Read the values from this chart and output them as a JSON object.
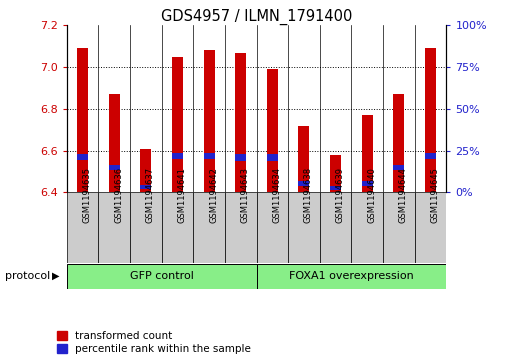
{
  "title": "GDS4957 / ILMN_1791400",
  "samples": [
    "GSM1194635",
    "GSM1194636",
    "GSM1194637",
    "GSM1194641",
    "GSM1194642",
    "GSM1194643",
    "GSM1194634",
    "GSM1194638",
    "GSM1194639",
    "GSM1194640",
    "GSM1194644",
    "GSM1194645"
  ],
  "red_values": [
    7.09,
    6.87,
    6.61,
    7.05,
    7.08,
    7.07,
    6.99,
    6.72,
    6.58,
    6.77,
    6.87,
    7.09
  ],
  "blue_bottom": [
    6.555,
    6.505,
    6.415,
    6.558,
    6.558,
    6.552,
    6.552,
    6.432,
    6.411,
    6.432,
    6.505,
    6.558
  ],
  "blue_heights": [
    0.03,
    0.026,
    0.022,
    0.03,
    0.03,
    0.03,
    0.03,
    0.022,
    0.018,
    0.022,
    0.026,
    0.03
  ],
  "ymin": 6.4,
  "ymax": 7.2,
  "yleft_ticks": [
    6.4,
    6.6,
    6.8,
    7.0,
    7.2
  ],
  "yright_ticks": [
    0,
    25,
    50,
    75,
    100
  ],
  "yright_labels": [
    "0%",
    "25%",
    "50%",
    "75%",
    "100%"
  ],
  "group1_label": "GFP control",
  "group2_label": "FOXA1 overexpression",
  "group1_count": 6,
  "group2_count": 6,
  "protocol_label": "protocol",
  "legend_red": "transformed count",
  "legend_blue": "percentile rank within the sample",
  "red_color": "#cc0000",
  "blue_color": "#2222cc",
  "bar_width": 0.35,
  "group_bg": "#88ee88",
  "tick_bg": "#cccccc",
  "figsize": [
    5.13,
    3.63
  ],
  "dpi": 100
}
